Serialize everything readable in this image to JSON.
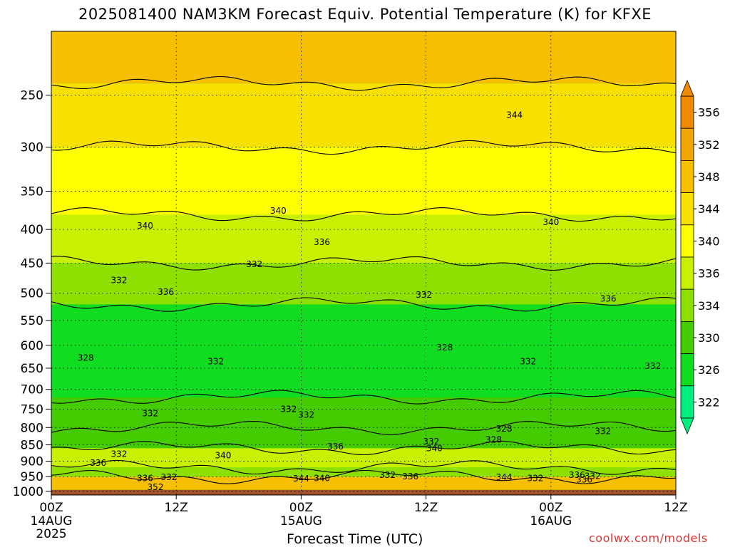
{
  "chart_data": {
    "type": "heatmap",
    "title": "2025081400 NAM3KM Forecast Equiv. Potential Temperature (K) for KFXE",
    "xlabel": "Forecast Time (UTC)",
    "ylabel": "",
    "x_ticks": [
      {
        "label": "00Z",
        "sub": [
          "14AUG",
          "2025"
        ],
        "hour": 0
      },
      {
        "label": "12Z",
        "sub": [],
        "hour": 12
      },
      {
        "label": "00Z",
        "sub": [
          "15AUG"
        ],
        "hour": 24
      },
      {
        "label": "12Z",
        "sub": [],
        "hour": 36
      },
      {
        "label": "00Z",
        "sub": [
          "16AUG"
        ],
        "hour": 48
      },
      {
        "label": "12Z",
        "sub": [],
        "hour": 60
      }
    ],
    "xlim_hours": [
      0,
      60
    ],
    "y_ticks": [
      "250",
      "300",
      "350",
      "400",
      "450",
      "500",
      "550",
      "600",
      "650",
      "700",
      "750",
      "800",
      "850",
      "900",
      "950",
      "1000"
    ],
    "y_tick_values": [
      250,
      300,
      350,
      400,
      450,
      500,
      550,
      600,
      650,
      700,
      750,
      800,
      850,
      900,
      950,
      1000
    ],
    "ylim_hpa": [
      200,
      1013
    ],
    "colorbar": {
      "levels": [
        356,
        352,
        348,
        344,
        340,
        336,
        334,
        330,
        326,
        322
      ],
      "labels": [
        "356",
        "352",
        "348",
        "344",
        "340",
        "336",
        "334",
        "330",
        "326",
        "322"
      ],
      "colors": [
        "#f08a00",
        "#f2a400",
        "#f6c000",
        "#f8e000",
        "#ffff00",
        "#c8f000",
        "#8ee000",
        "#44cc00",
        "#10dd20",
        "#00f080"
      ]
    },
    "grid": true,
    "layers": [
      {
        "p_top": 200,
        "p_bot": 240,
        "value": 350
      },
      {
        "p_top": 240,
        "p_bot": 300,
        "value": 346
      },
      {
        "p_top": 300,
        "p_bot": 380,
        "value": 342
      },
      {
        "p_top": 380,
        "p_bot": 450,
        "value": 338
      },
      {
        "p_top": 450,
        "p_bot": 520,
        "value": 334
      },
      {
        "p_top": 520,
        "p_bot": 720,
        "value": 329
      },
      {
        "p_top": 720,
        "p_bot": 800,
        "value": 332
      },
      {
        "p_top": 800,
        "p_bot": 860,
        "value": 330
      },
      {
        "p_top": 860,
        "p_bot": 920,
        "value": 338
      },
      {
        "p_top": 920,
        "p_bot": 950,
        "value": 334
      },
      {
        "p_top": 950,
        "p_bot": 995,
        "value": 350
      }
    ],
    "contour_labels": [
      {
        "text": "344",
        "hour": 44.5,
        "p": 268
      },
      {
        "text": "340",
        "hour": 21.8,
        "p": 375
      },
      {
        "text": "340",
        "hour": 9.0,
        "p": 395
      },
      {
        "text": "336",
        "hour": 26.0,
        "p": 418
      },
      {
        "text": "340",
        "hour": 48.0,
        "p": 390
      },
      {
        "text": "332",
        "hour": 19.5,
        "p": 452
      },
      {
        "text": "332",
        "hour": 6.5,
        "p": 478
      },
      {
        "text": "336",
        "hour": 11.0,
        "p": 498
      },
      {
        "text": "332",
        "hour": 35.8,
        "p": 503
      },
      {
        "text": "336",
        "hour": 53.5,
        "p": 510
      },
      {
        "text": "328",
        "hour": 3.3,
        "p": 627
      },
      {
        "text": "332",
        "hour": 15.8,
        "p": 635
      },
      {
        "text": "328",
        "hour": 37.8,
        "p": 605
      },
      {
        "text": "332",
        "hour": 45.8,
        "p": 635
      },
      {
        "text": "332",
        "hour": 57.8,
        "p": 645
      },
      {
        "text": "332",
        "hour": 9.5,
        "p": 762
      },
      {
        "text": "332",
        "hour": 22.8,
        "p": 750
      },
      {
        "text": "332",
        "hour": 24.5,
        "p": 765
      },
      {
        "text": "328",
        "hour": 43.5,
        "p": 803
      },
      {
        "text": "332",
        "hour": 53.0,
        "p": 810
      },
      {
        "text": "332",
        "hour": 36.5,
        "p": 840
      },
      {
        "text": "340",
        "hour": 36.8,
        "p": 860
      },
      {
        "text": "328",
        "hour": 42.5,
        "p": 835
      },
      {
        "text": "336",
        "hour": 27.3,
        "p": 855
      },
      {
        "text": "332",
        "hour": 6.5,
        "p": 878
      },
      {
        "text": "340",
        "hour": 16.5,
        "p": 882
      },
      {
        "text": "336",
        "hour": 4.5,
        "p": 905
      },
      {
        "text": "336",
        "hour": 9.0,
        "p": 955
      },
      {
        "text": "332",
        "hour": 11.3,
        "p": 952
      },
      {
        "text": "352",
        "hour": 10.0,
        "p": 985
      },
      {
        "text": "344",
        "hour": 24.0,
        "p": 957
      },
      {
        "text": "340",
        "hour": 26.0,
        "p": 955
      },
      {
        "text": "332",
        "hour": 32.3,
        "p": 945
      },
      {
        "text": "336",
        "hour": 34.5,
        "p": 950
      },
      {
        "text": "344",
        "hour": 43.5,
        "p": 952
      },
      {
        "text": "332",
        "hour": 46.5,
        "p": 955
      },
      {
        "text": "336",
        "hour": 50.5,
        "p": 945
      },
      {
        "text": "332",
        "hour": 52.0,
        "p": 948
      },
      {
        "text": "336",
        "hour": 51.2,
        "p": 960
      }
    ]
  },
  "xaxis_title": "Forecast Time (UTC)",
  "credit": "coolwx.com/models"
}
